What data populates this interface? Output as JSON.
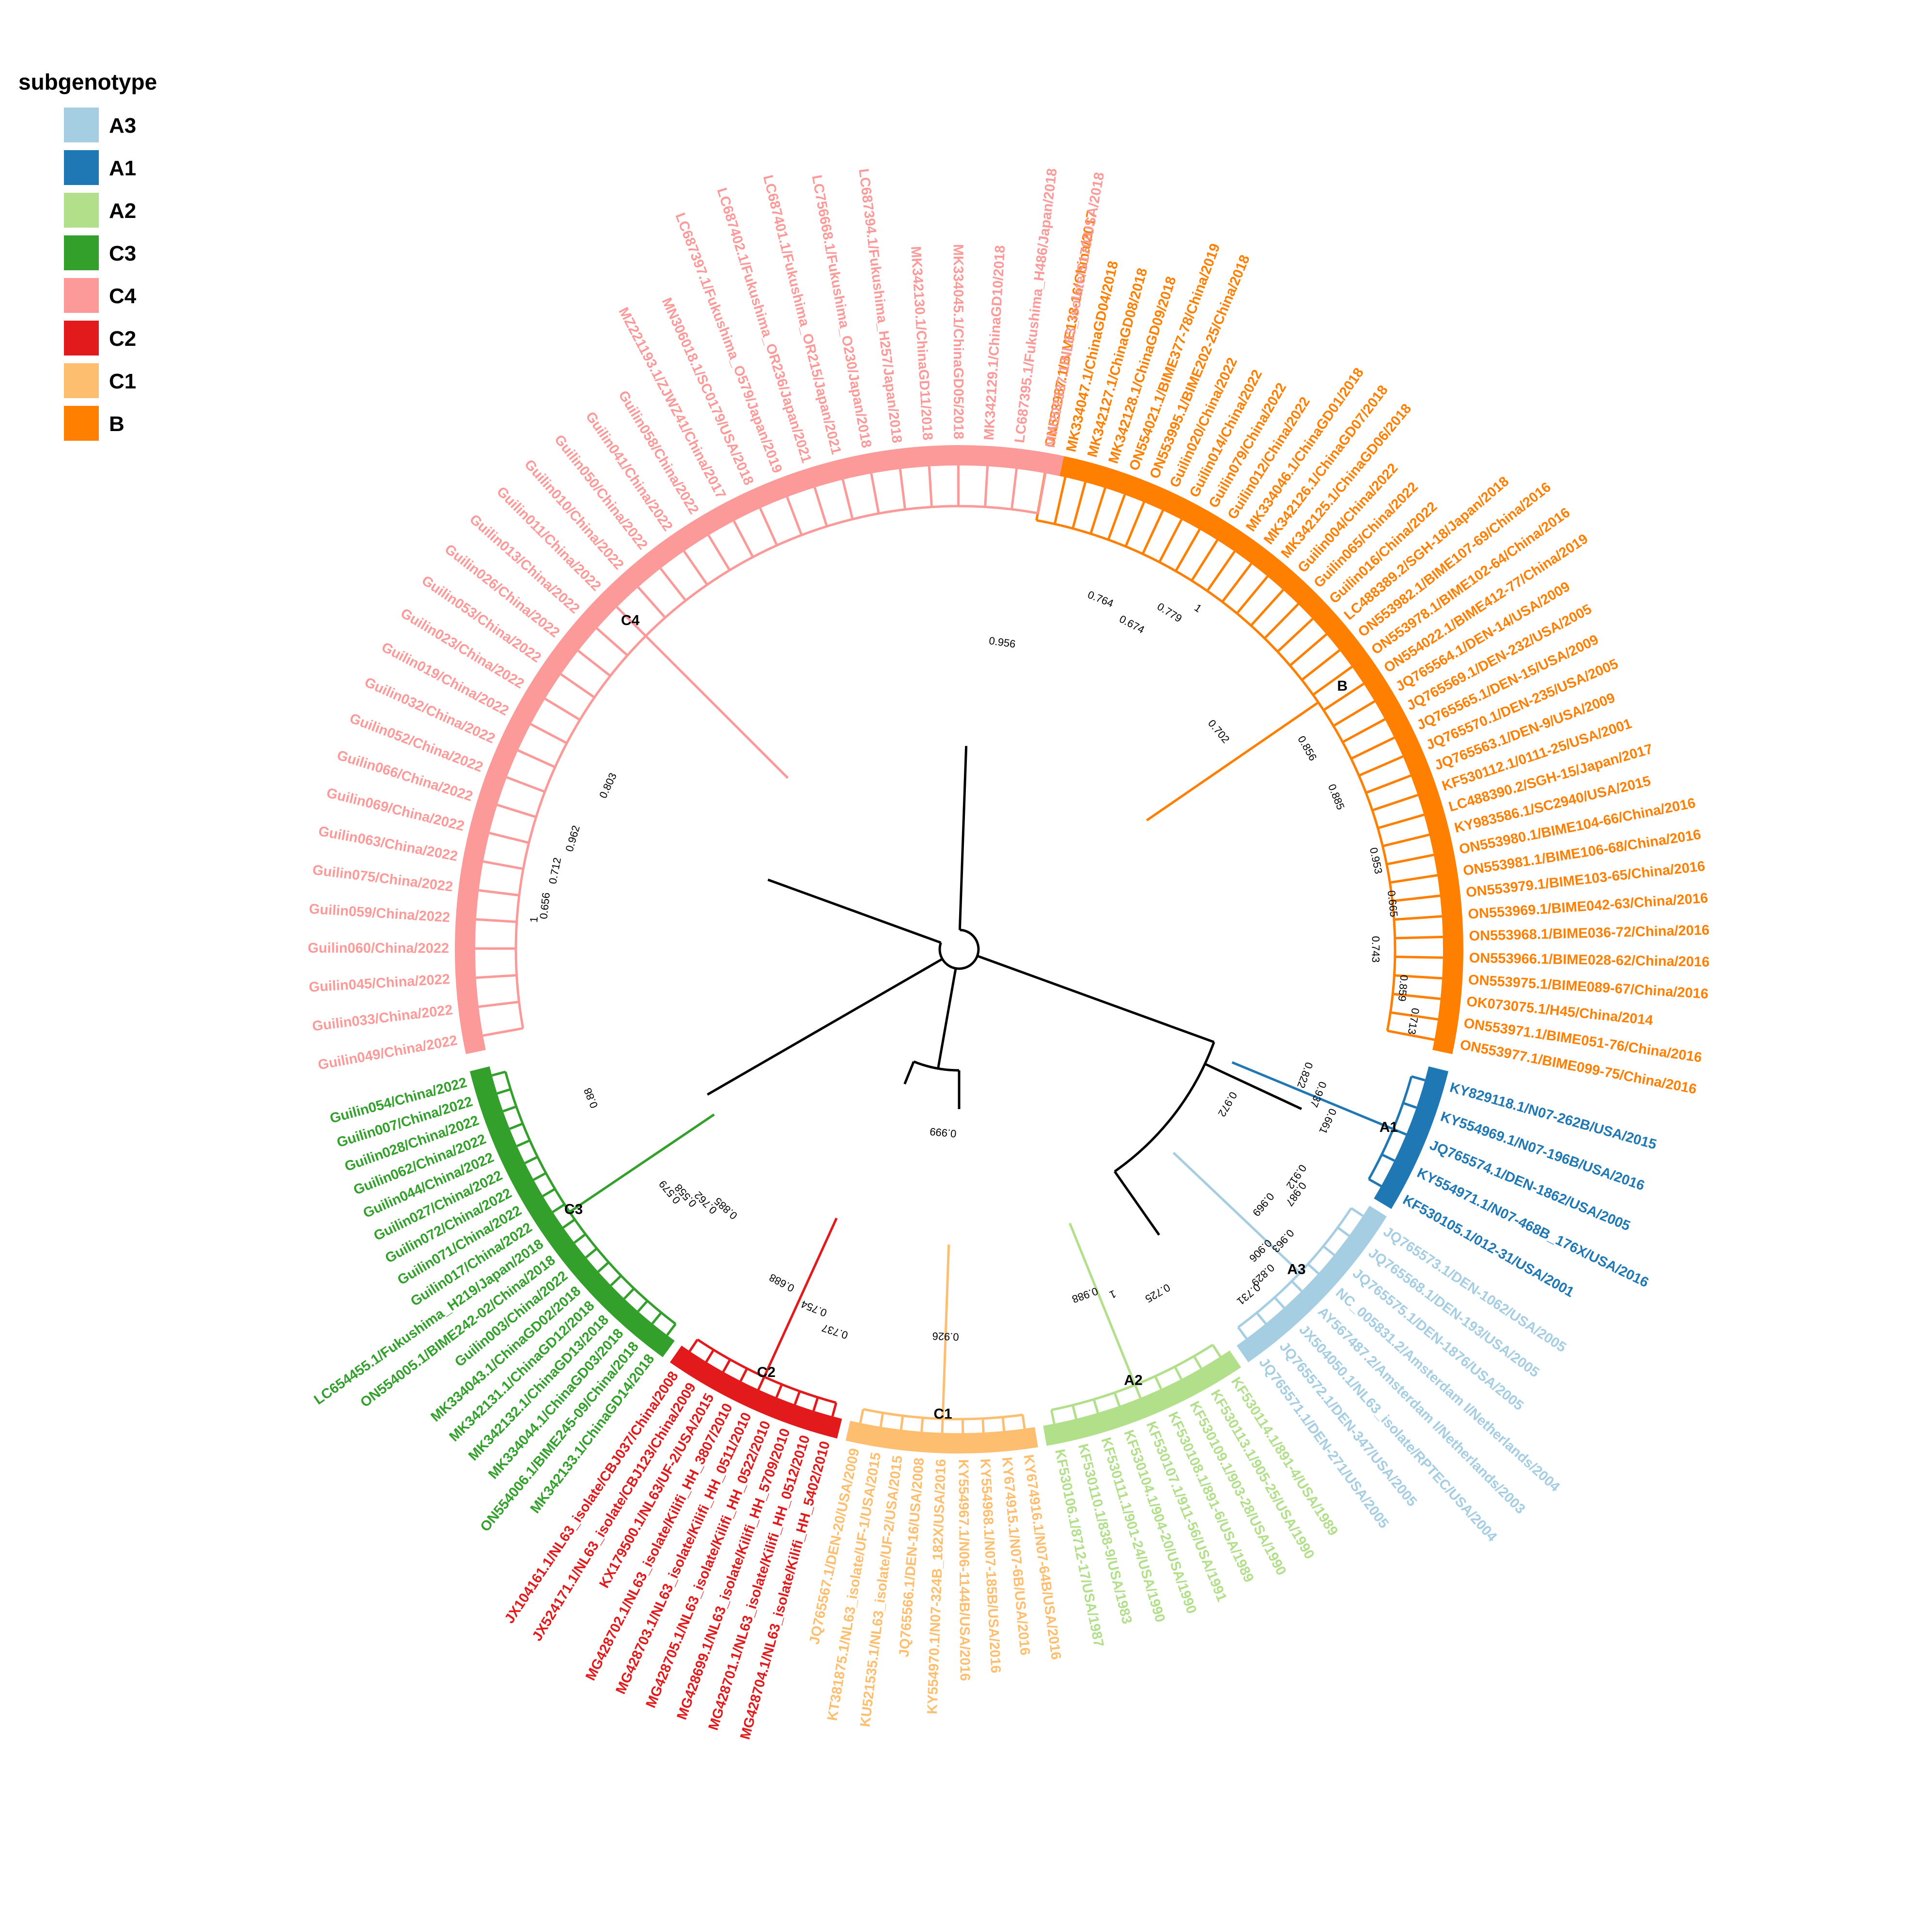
{
  "legend": {
    "title": "subgenotype",
    "items": [
      {
        "label": "A3",
        "color": "#a6cee3"
      },
      {
        "label": "A1",
        "color": "#1f78b4"
      },
      {
        "label": "A2",
        "color": "#b2df8a"
      },
      {
        "label": "C3",
        "color": "#33a02c"
      },
      {
        "label": "C4",
        "color": "#fb9a99"
      },
      {
        "label": "C2",
        "color": "#e31a1c"
      },
      {
        "label": "C1",
        "color": "#fdbf6f"
      },
      {
        "label": "B",
        "color": "#ff7f00"
      }
    ]
  },
  "clades": [
    {
      "name": "B",
      "tips": [
        "ON553987.1/BIME133-16/China/2017",
        "MK334047.1/ChinaGD04/2018",
        "MK342127.1/ChinaGD08/2018",
        "MK342128.1/ChinaGD09/2018",
        "ON554021.1/BIME377-78/China/2019",
        "ON553995.1/BIME202-25/China/2018",
        "Guilin020/China/2022",
        "Guilin014/China/2022",
        "Guilin079/China/2022",
        "Guilin012/China/2022",
        "MK334046.1/ChinaGD01/2018",
        "MK342126.1/ChinaGD07/2018",
        "MK342125.1/ChinaGD06/2018",
        "Guilin004/China/2022",
        "Guilin065/China/2022",
        "Guilin016/China/2022",
        "LC488389.2/SGH-18/Japan/2018",
        "ON553982.1/BIME107-69/China/2016",
        "ON553978.1/BIME102-64/China/2016",
        "ON554022.1/BIME412-77/China/2019",
        "JQ765564.1/DEN-14/USA/2009",
        "JQ765569.1/DEN-232/USA/2005",
        "JQ765565.1/DEN-15/USA/2009",
        "JQ765570.1/DEN-235/USA/2005",
        "JQ765563.1/DEN-9/USA/2009",
        "KF530112.1/0111-25/USA/2001",
        "LC488390.2/SGH-15/Japan/2017",
        "KY983586.1/SC2940/USA/2015",
        "ON553980.1/BIME104-66/China/2016",
        "ON553981.1/BIME106-68/China/2016",
        "ON553979.1/BIME103-65/China/2016",
        "ON553969.1/BIME042-63/China/2016",
        "ON553968.1/BIME036-72/China/2016",
        "ON553966.1/BIME028-62/China/2016",
        "ON553975.1/BIME089-67/China/2016",
        "OK073075.1/H45/China/2014",
        "ON553971.1/BIME051-76/China/2016",
        "ON553977.1/BIME099-75/China/2016"
      ]
    },
    {
      "name": "C4",
      "tips": [
        "Guilin049/China/2022",
        "Guilin033/China/2022",
        "Guilin045/China/2022",
        "Guilin060/China/2022",
        "Guilin059/China/2022",
        "Guilin075/China/2022",
        "Guilin063/China/2022",
        "Guilin069/China/2022",
        "Guilin066/China/2022",
        "Guilin052/China/2022",
        "Guilin032/China/2022",
        "Guilin019/China/2022",
        "Guilin023/China/2022",
        "Guilin053/China/2022",
        "Guilin026/China/2022",
        "Guilin013/China/2022",
        "Guilin011/China/2022",
        "Guilin010/China/2022",
        "Guilin050/China/2022",
        "Guilin041/China/2022",
        "Guilin058/China/2022",
        "MZ221193.1/ZJWZ41/China/2017",
        "MN306018.1/SC0179/USA/2018",
        "LC687397.1/Fukushima_O579/Japan/2019",
        "LC687402.1/Fukushima_OR236/Japan/2021",
        "LC687401.1/Fukushima_OR215/Japan/2021",
        "LC756668.1/Fukushima_O230/Japan/2018",
        "LC687394.1/Fukushima_H257/Japan/2018",
        "MK342130.1/ChinaGD11/2018",
        "MK334045.1/ChinaGD05/2018",
        "MK342129.1/ChinaGD10/2018",
        "LC687395.1/Fukushima_H486/Japan/2018",
        "MW202337.1/NL63_isolate/S170/USA/2018"
      ]
    },
    {
      "name": "C3",
      "tips": [
        "MK342133.1/ChinaGD14/2018",
        "ON554006.1/BIME245-09/China/2018",
        "MK334044.1/ChinaGD03/2018",
        "MK342132.1/ChinaGD13/2018",
        "MK342131.1/ChinaGD12/2018",
        "MK334043.1/ChinaGD02/2018",
        "Guilin003/China/2022",
        "ON554005.1/BIME242-02/China/2018",
        "LC654455.1/Fukushima_H219/Japan/2018",
        "Guilin017/China/2022",
        "Guilin071/China/2022",
        "Guilin072/China/2022",
        "Guilin027/China/2022",
        "Guilin044/China/2022",
        "Guilin062/China/2022",
        "Guilin028/China/2022",
        "Guilin007/China/2022",
        "Guilin054/China/2022"
      ]
    },
    {
      "name": "C2",
      "tips": [
        "MG428704.1/NL63_isolate/Kilifi_HH_5402/2010",
        "MG428701.1/NL63_isolate/Kilifi_HH_0512/2010",
        "MG428699.1/NL63_isolate/Kilifi_HH_5709/2010",
        "MG428705.1/NL63_isolate/Kilifi_HH_0522/2010",
        "MG428703.1/NL63_isolate/Kilifi_HH_0511/2010",
        "MG428702.1/NL63_isolate/Kilifi_HH_3807/2010",
        "KX179500.1/NL63/UF-2/USA/2015",
        "JX524171.1/NL63_isolate/CBJ123/China/2009",
        "JX104161.1/NL63_isolate/CBJ037/China/2008"
      ]
    },
    {
      "name": "C1",
      "tips": [
        "KY674916.1/N07-64B/USA/2016",
        "KY674915.1/N07-6B/USA/2016",
        "KY554968.1/N07-185B/USA/2016",
        "KY554967.1/N06-1144B/USA/2016",
        "KY554970.1/N07-324B_182X/USA/2016",
        "JQ765566.1/DEN-16/USA/2008",
        "KU521535.1/NL63_isolate/UF-2/USA/2015",
        "KT381875.1/NL63_isolate/UF-1/USA/2015",
        "JQ765567.1/DEN-20/USA/2009"
      ]
    },
    {
      "name": "A2",
      "tips": [
        "KF530114.1/891-4/USA/1989",
        "KF530113.1/905-25/USA/1990",
        "KF530109.1/903-28/USA/1990",
        "KF530108.1/891-6/USA/1989",
        "KF530107.1/911-56/USA/1991",
        "KF530104.1/904-20/USA/1990",
        "KF530111.1/901-24/USA/1990",
        "KF530110.1/838-9/USA/1983",
        "KF530106.1/8712-17/USA/1987"
      ]
    },
    {
      "name": "A3",
      "tips": [
        "JQ765573.1/DEN-1062/USA/2005",
        "JQ765568.1/DEN-193/USA/2005",
        "JQ765575.1/DEN-1876/USA/2005",
        "NC_005831.2/Amsterdam I/Netherlands/2004",
        "AY567487.2/Amsterdam I/Netherlands/2003",
        "JX504050.1/NL63_isolate/RPTEC/USA/2004",
        "JQ765572.1/DEN-347/USA/2005",
        "JQ765571.1/DEN-271/USA/2005"
      ]
    },
    {
      "name": "A1",
      "tips": [
        "KY829118.1/N07-262B/USA/2015",
        "KY554969.1/N07-196B/USA/2016",
        "JQ765574.1/DEN-1862/USA/2005",
        "KY554971.1/N07-468B_176X/USA/2016",
        "KF530105.1/012-31/USA/2001"
      ]
    }
  ],
  "support_values": [
    "0.764",
    "0.674",
    "0.779",
    "1",
    "0.956",
    "0.702",
    "0.856",
    "0.885",
    "0.953",
    "0.665",
    "0.743",
    "0.859",
    "0.713",
    "0.803",
    "0.962",
    "0.712",
    "0.656",
    "1",
    "0.88",
    "0.579",
    "0.558",
    "0.762",
    "0.885",
    "0.688",
    "0.754",
    "0.737",
    "0.926",
    "0.988",
    "1",
    "0.725",
    "0.969",
    "0.987",
    "0.912",
    "0.906",
    "0.963",
    "0.829",
    "0.731",
    "0.822",
    "0.937",
    "0.661",
    "0.972",
    "0.999"
  ]
}
